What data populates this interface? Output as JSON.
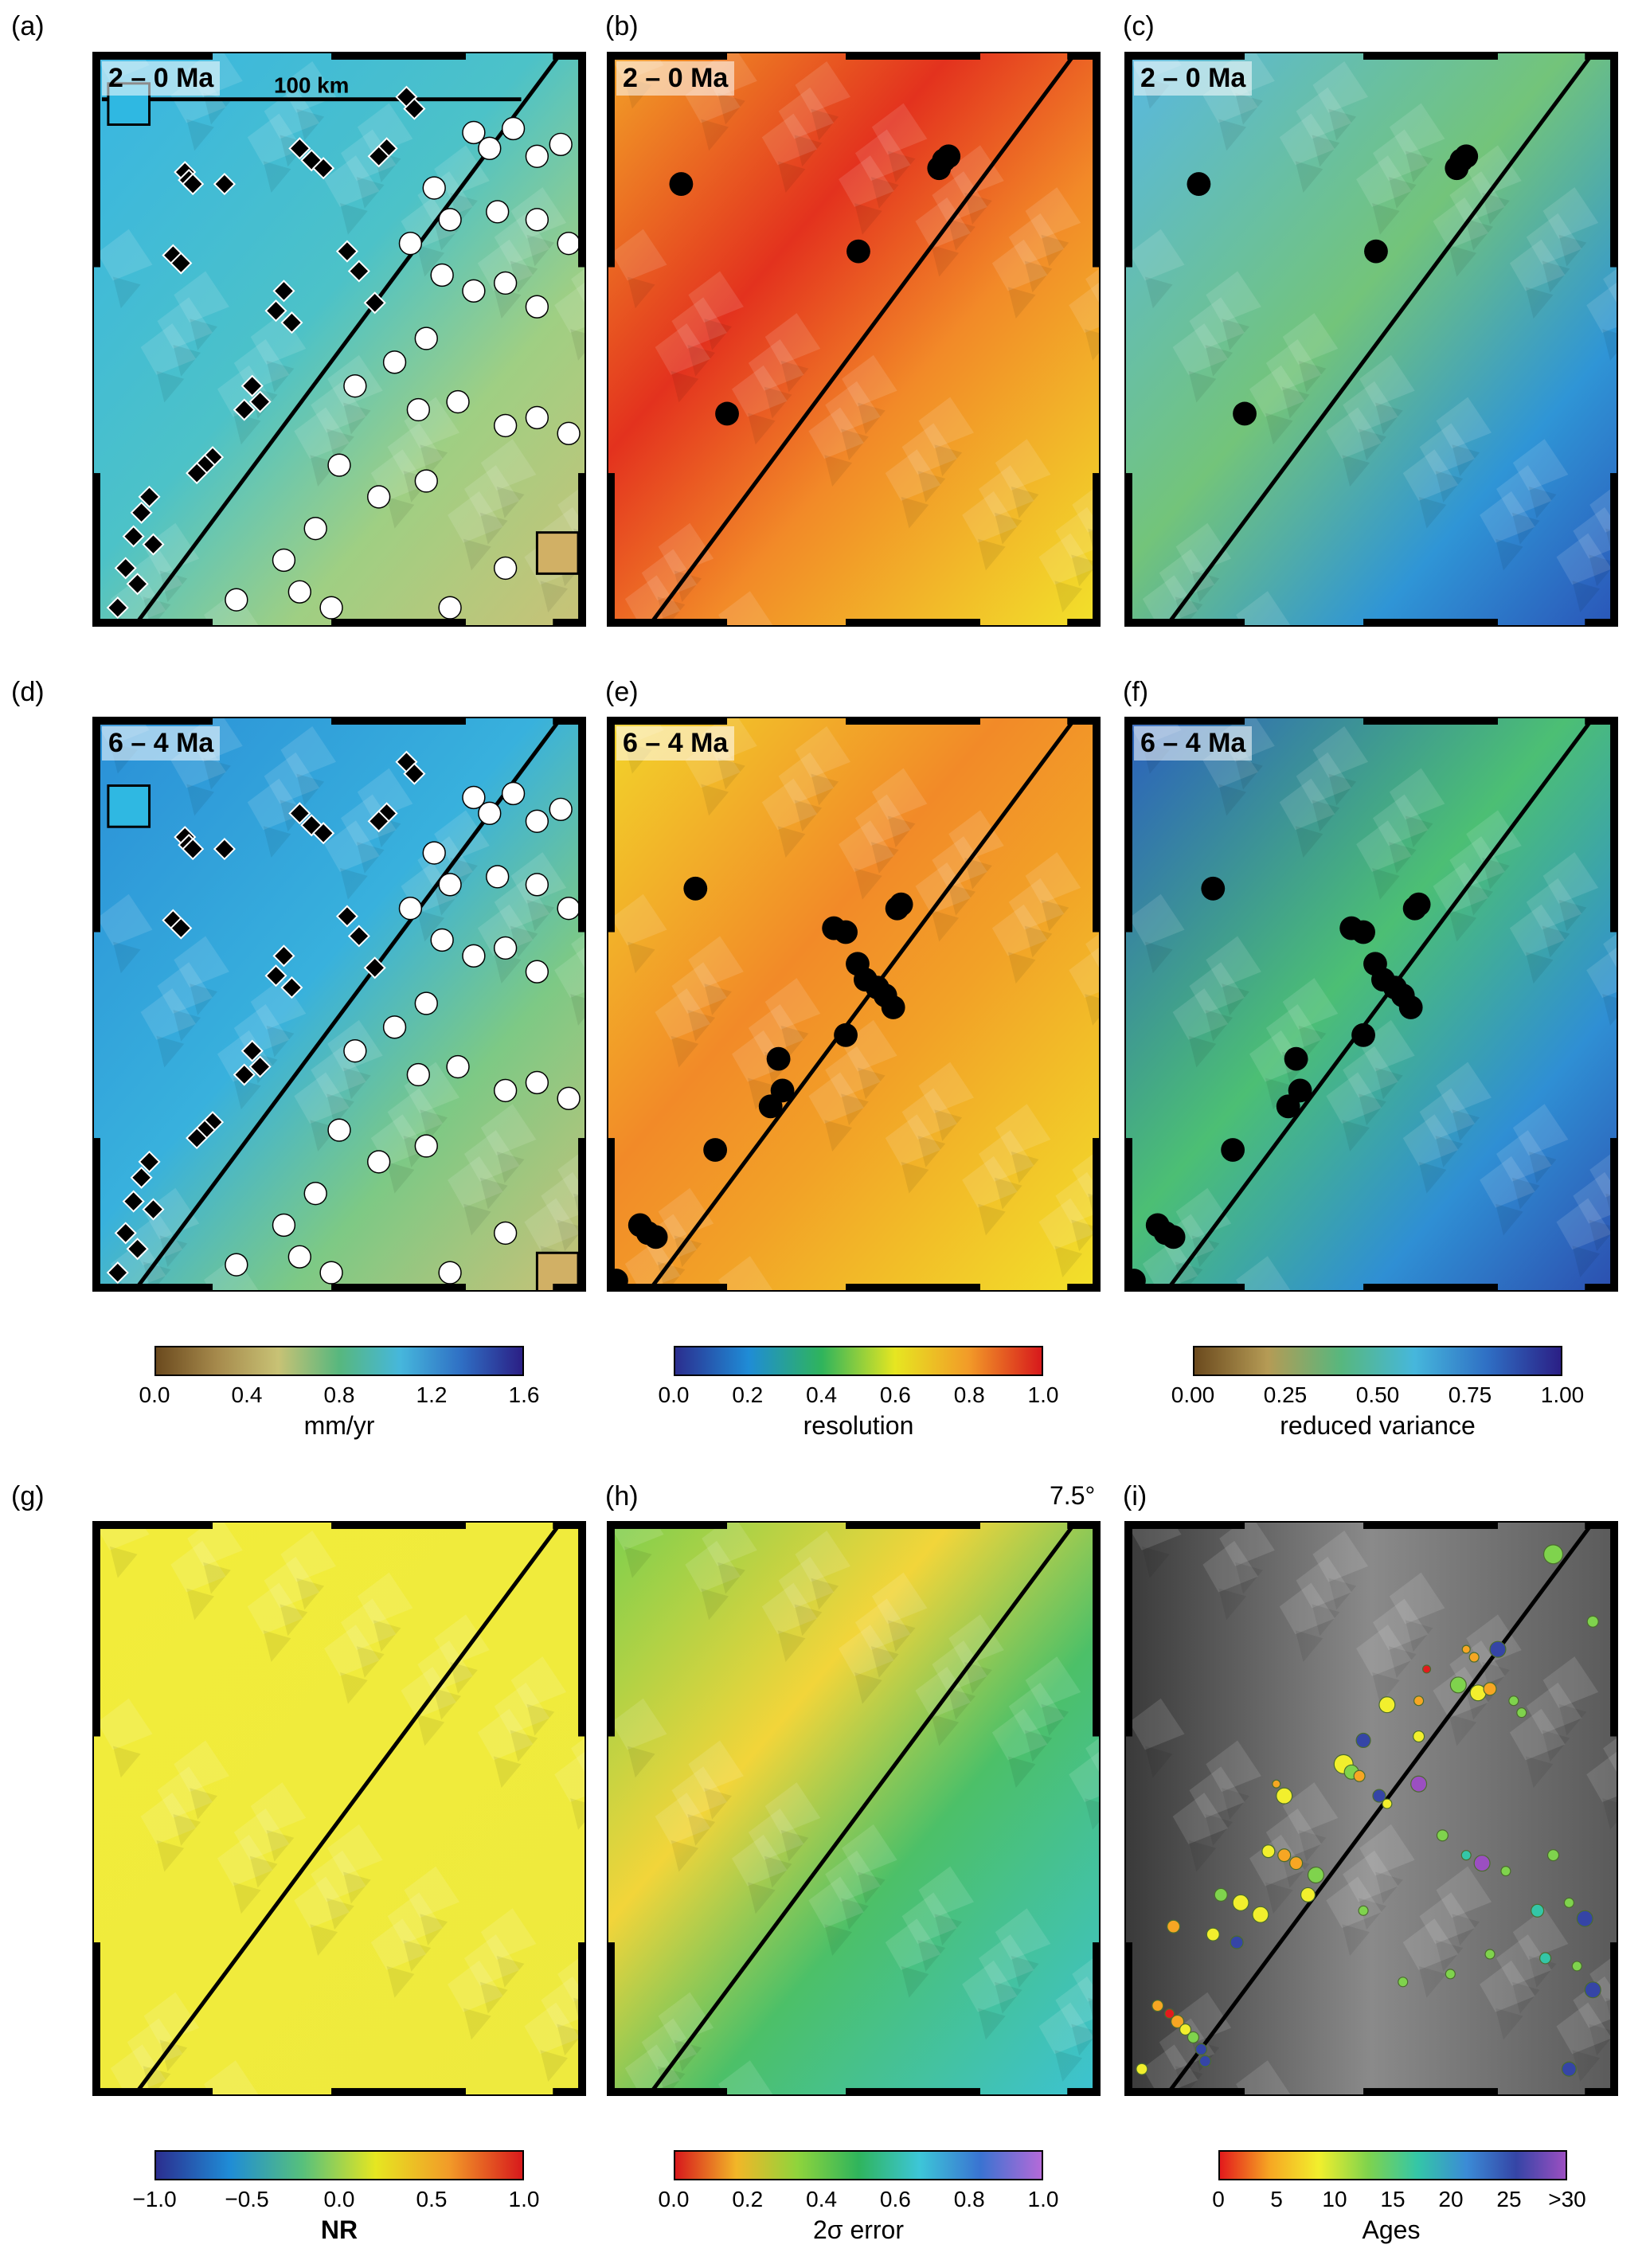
{
  "chart_data": [
    {
      "panel": "(a)",
      "type": "heatmap",
      "time_label": "2 – 0 Ma",
      "field": "mm/yr",
      "scale_bar": "100 km",
      "markers": [
        "diamond",
        "circle"
      ]
    },
    {
      "panel": "(b)",
      "type": "heatmap",
      "time_label": "2 – 0 Ma",
      "field": "resolution"
    },
    {
      "panel": "(c)",
      "type": "heatmap",
      "time_label": "2 – 0 Ma",
      "field": "reduced variance"
    },
    {
      "panel": "(d)",
      "type": "heatmap",
      "time_label": "6 – 4 Ma",
      "field": "mm/yr",
      "markers": [
        "diamond",
        "circle"
      ]
    },
    {
      "panel": "(e)",
      "type": "heatmap",
      "time_label": "6 – 4 Ma",
      "field": "resolution"
    },
    {
      "panel": "(f)",
      "type": "heatmap",
      "time_label": "6 – 4 Ma",
      "field": "reduced variance"
    },
    {
      "panel": "(g)",
      "type": "heatmap",
      "field": "NR"
    },
    {
      "panel": "(h)",
      "type": "heatmap",
      "field": "2σ error",
      "annotation": "7.5°"
    },
    {
      "panel": "(i)",
      "type": "scatter",
      "field": "Ages"
    }
  ],
  "panels": {
    "a": {
      "letter": "(a)",
      "label": "2 – 0 Ma",
      "scale": "100 km"
    },
    "b": {
      "letter": "(b)",
      "label": "2 – 0 Ma"
    },
    "c": {
      "letter": "(c)",
      "label": "2 – 0 Ma"
    },
    "d": {
      "letter": "(d)",
      "label": "6 – 4 Ma"
    },
    "e": {
      "letter": "(e)",
      "label": "6 – 4 Ma"
    },
    "f": {
      "letter": "(f)",
      "label": "6 – 4 Ma"
    },
    "g": {
      "letter": "(g)"
    },
    "h": {
      "letter": "(h)",
      "annotation": "7.5°"
    },
    "i": {
      "letter": "(i)"
    }
  },
  "colorbars": {
    "rate": {
      "title": "mm/yr",
      "ticks": [
        "0.0",
        "0.4",
        "0.8",
        "1.2",
        "1.6"
      ],
      "range": [
        0,
        1.8
      ],
      "colors": [
        "#6b4a1e",
        "#a68a4c",
        "#c8c275",
        "#57b77e",
        "#46b7dc",
        "#2f6fc4",
        "#2b1f85"
      ]
    },
    "resolution": {
      "title": "resolution",
      "ticks": [
        "0.0",
        "0.2",
        "0.4",
        "0.6",
        "0.8",
        "1.0"
      ],
      "range": [
        0,
        1
      ],
      "colors": [
        "#2b2e8f",
        "#1f8cd6",
        "#2fb45c",
        "#e6e621",
        "#f29b28",
        "#d7191c"
      ]
    },
    "rv": {
      "title": "reduced variance",
      "ticks": [
        "0.00",
        "0.25",
        "0.50",
        "0.75",
        "1.00"
      ],
      "range": [
        0,
        1
      ],
      "colors": [
        "#6b4a1e",
        "#b59b55",
        "#57b77e",
        "#46b7dc",
        "#2f6fc4",
        "#2b1f85"
      ]
    },
    "nr": {
      "title": "NR",
      "ticks": [
        "−1.0",
        "−0.5",
        "0.0",
        "0.5",
        "1.0"
      ],
      "range": [
        -1,
        1
      ],
      "colors": [
        "#2b2e8f",
        "#1f8cd6",
        "#57c07c",
        "#e6e621",
        "#f29b28",
        "#d7191c"
      ]
    },
    "err": {
      "title": "2σ error",
      "ticks": [
        "0.0",
        "0.2",
        "0.4",
        "0.6",
        "0.8",
        "1.0"
      ],
      "range": [
        0,
        1
      ],
      "colors": [
        "#d7191c",
        "#f2b628",
        "#8fd43c",
        "#2fb45c",
        "#3dc6d8",
        "#3a73d1",
        "#b46ad8"
      ]
    },
    "ages": {
      "title": "Ages",
      "ticks": [
        "0",
        "5",
        "10",
        "15",
        "20",
        "25",
        ">30"
      ],
      "range": [
        0,
        32
      ],
      "colors": [
        "#e31a1c",
        "#f6a623",
        "#f2ef2d",
        "#7fd34d",
        "#34c6a7",
        "#3b8bd6",
        "#3545a6",
        "#9b4fc1"
      ]
    }
  }
}
